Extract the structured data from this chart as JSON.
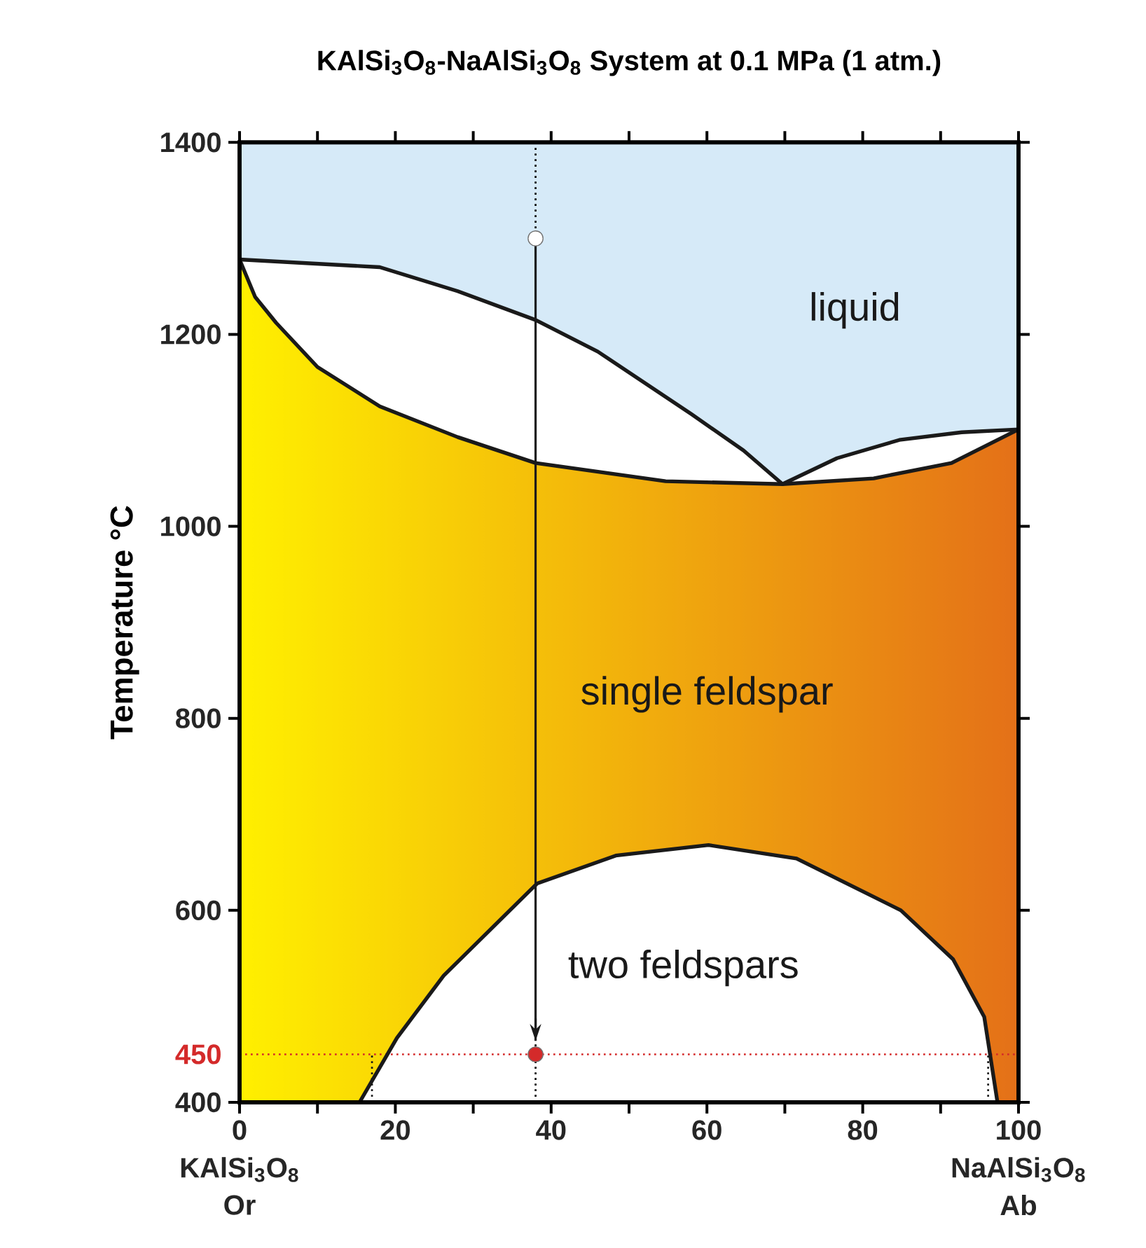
{
  "chart_data": {
    "type": "line",
    "title": "KAlSi$_{3}$O$_{8}$-NaAlSi$_{3}$O$_{8}$ System at 0.1 MPa (1 atm.)",
    "ylabel": "Temperature °C",
    "xlim": [
      0,
      100
    ],
    "ylim": [
      400,
      1400
    ],
    "xticks": [
      0,
      {
        "value": 10,
        "label": null
      },
      20,
      {
        "value": 30,
        "label": null
      },
      40,
      {
        "value": 50,
        "label": null
      },
      60,
      {
        "value": 70,
        "label": null
      },
      80,
      {
        "value": 90,
        "label": null
      },
      100
    ],
    "yticks": [
      400,
      600,
      800,
      1000,
      1200,
      1400
    ],
    "grid": false,
    "series": [
      {
        "color": "#1a1a1a",
        "x": [
          0,
          18,
          28,
          38,
          46,
          58,
          64.7,
          69.7,
          76.7,
          84.7,
          92.7,
          100
        ],
        "values": [
          1278,
          1270,
          1245,
          1215,
          1182,
          1117,
          1079,
          1044,
          1071,
          1090,
          1098,
          1101
        ]
      },
      {
        "color": "#1a1a1a",
        "x": [
          0,
          2,
          4.7,
          10,
          18,
          28,
          38,
          54.7,
          69.7,
          81.4,
          91.4,
          100
        ],
        "values": [
          1278,
          1239,
          1212,
          1166,
          1125,
          1093,
          1066,
          1047,
          1044,
          1050,
          1066,
          1101
        ]
      },
      {
        "color": "#1a1a1a",
        "x": [
          15.4,
          20.2,
          26.2,
          38.2,
          48.3,
          60.2,
          71.5,
          84.9,
          91.6,
          95.6,
          97.3
        ],
        "values": [
          400,
          467,
          532,
          628,
          657,
          668,
          654,
          600,
          549,
          489,
          400
        ]
      },
      {
        "color": "#1a1a1a",
        "x": [
          38,
          38
        ],
        "values": [
          1300,
          464
        ]
      },
      {
        "color": "#1a1a1a",
        "line_style": "dotted",
        "x": [
          17,
          17
        ],
        "values": [
          400,
          450
        ]
      },
      {
        "color": "#1a1a1a",
        "line_style": "dotted",
        "x": [
          96.1,
          96.1
        ],
        "values": [
          400,
          450
        ]
      },
      {
        "type": "scatter",
        "color": "#ffffff",
        "marker": "circle",
        "x": [
          38
        ],
        "values": [
          1300
        ]
      },
      {
        "type": "scatter",
        "color": "#d42a2a",
        "marker": "circle",
        "x": [
          38
        ],
        "values": [
          450
        ]
      }
    ],
    "ref_lines": [
      {
        "axis": "x",
        "value": 38,
        "line_style": "dotted"
      },
      {
        "axis": "y",
        "value": 450,
        "label": "450",
        "line_style": "dotted",
        "color": "#d42a2a"
      }
    ],
    "annotations": [
      "liquid",
      "single feldspar",
      "two feldspars",
      "KAlSi$_{3}$O$_{8}$",
      "Or",
      "NaAlSi$_{3}$O$_{8}$",
      "Ab"
    ]
  }
}
